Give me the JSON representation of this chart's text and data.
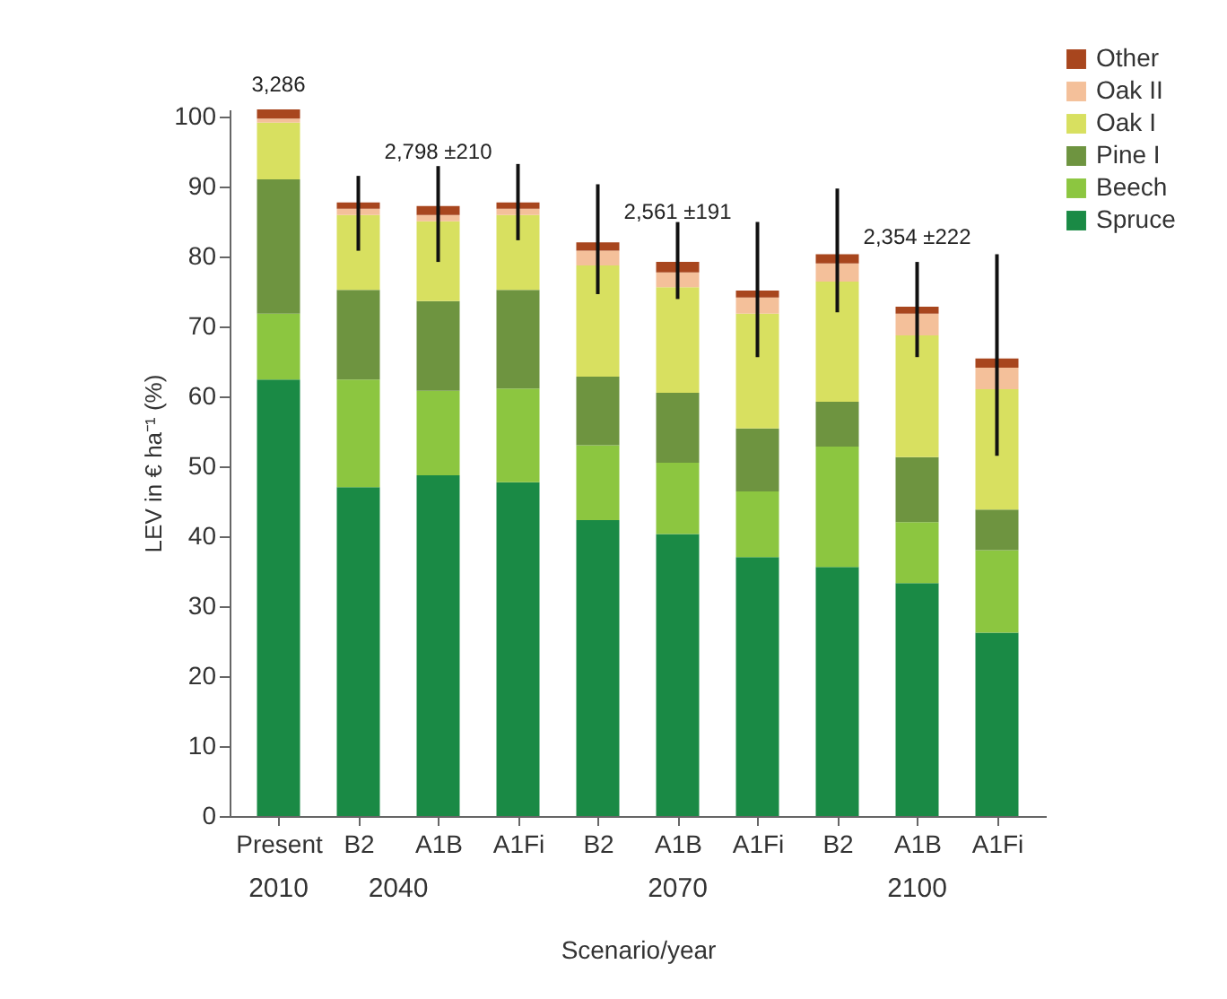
{
  "chart_data": {
    "type": "bar",
    "stacked": true,
    "xlabel": "Scenario/year",
    "ylabel": "LEV in € ha⁻¹ (%)",
    "categories": [
      "Present",
      "B2",
      "A1B",
      "A1Fi",
      "B2",
      "A1B",
      "A1Fi",
      "B2",
      "A1B",
      "A1Fi"
    ],
    "ylim": [
      0,
      101
    ],
    "yticks": [
      0,
      10,
      20,
      30,
      40,
      50,
      60,
      70,
      80,
      90,
      100
    ],
    "grid": false,
    "legend": "top right",
    "series": [
      {
        "name": "Spruce",
        "color": "#1a8a45",
        "values": [
          62.4,
          47,
          48.7,
          47.7,
          42.3,
          40.3,
          37,
          35.6,
          33.3,
          26.2
        ]
      },
      {
        "name": "Beech",
        "color": "#8cc640",
        "values": [
          9.4,
          15.4,
          12.1,
          13.4,
          10.7,
          10.2,
          9.4,
          17.2,
          8.7,
          11.8
        ]
      },
      {
        "name": "Pine I",
        "color": "#6e9440",
        "values": [
          19.2,
          12.8,
          12.8,
          14.1,
          9.8,
          10,
          9,
          6.4,
          9.3,
          5.8
        ]
      },
      {
        "name": "Oak I",
        "color": "#d8e060",
        "values": [
          8.1,
          10.7,
          11.4,
          10.7,
          15.9,
          15.1,
          16.4,
          17.2,
          17.4,
          17.2
        ]
      },
      {
        "name": "Oak II",
        "color": "#f4c09a",
        "values": [
          0.6,
          0.9,
          0.9,
          0.9,
          2.1,
          2.1,
          2.3,
          2.6,
          3.1,
          3.1
        ]
      },
      {
        "name": "Other",
        "color": "#a8461e",
        "values": [
          1.3,
          0.9,
          1.3,
          0.9,
          1.2,
          1.5,
          1,
          1.3,
          1,
          1.3
        ],
        "errors": [
          null,
          [
            80.8,
            91.5
          ],
          [
            79.2,
            92.9
          ],
          [
            82.3,
            93.2
          ],
          [
            74.6,
            90.3
          ],
          [
            73.9,
            84.9
          ],
          [
            65.6,
            84.9
          ],
          [
            72,
            89.7
          ],
          [
            65.6,
            79.2
          ],
          [
            51.5,
            80.3
          ]
        ]
      }
    ],
    "annotations": [
      "3,286",
      "2,798 ±210",
      "2,561 ±191",
      "2,354 ±222",
      "2010",
      "2040",
      "2070",
      "2100"
    ]
  }
}
